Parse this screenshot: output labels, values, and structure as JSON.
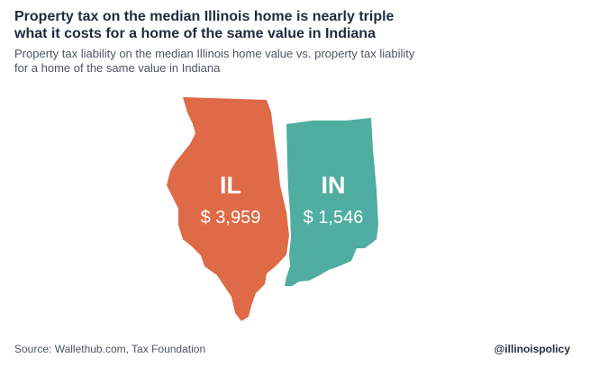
{
  "header": {
    "title_line1": "Property tax on the median Illinois home is nearly triple",
    "title_line2": "what it costs for a home of the same value in Indiana",
    "subtitle_line1": "Property tax liability on the median Illinois home value vs. property tax liability",
    "subtitle_line2": "for a home of the same value in Indiana"
  },
  "footer": {
    "source": "Source: Wallethub.com, Tax Foundation",
    "handle": "@illinoispolicy"
  },
  "colors": {
    "illinois": "#df6a47",
    "indiana": "#4fada1",
    "text_on_map": "#ffffff"
  },
  "chart_data": {
    "type": "map",
    "regions": [
      {
        "abbr": "IL",
        "value": 3959,
        "label": "$ 3,959"
      },
      {
        "abbr": "IN",
        "value": 1546,
        "label": "$ 1,546"
      }
    ]
  }
}
